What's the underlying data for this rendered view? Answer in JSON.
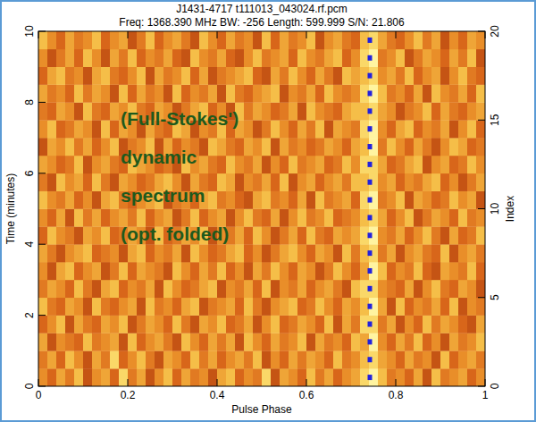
{
  "chart_data": {
    "type": "heatmap",
    "title": "J1431-4717 t111013_043024.rf.pcm",
    "subtitle": "Freq: 1368.390 MHz BW: -256 Length: 599.999 S/N: 21.806",
    "x_label": "Pulse Phase",
    "y_label": "Time (minutes)",
    "y2_label": "Index",
    "annotation": [
      "(Full-Stokes')",
      "dynamic",
      "spectrum",
      "(opt. folded)"
    ],
    "xlim": [
      0,
      1
    ],
    "xticks": [
      0,
      0.2,
      0.4,
      0.6,
      0.8,
      1
    ],
    "ylim": [
      0,
      10
    ],
    "yticks": [
      0,
      2,
      4,
      6,
      8,
      10
    ],
    "y2lim": [
      0,
      20
    ],
    "y2ticks": [
      0,
      5,
      10,
      15,
      20
    ],
    "value_range": [
      0,
      9
    ],
    "cells": [
      [
        5,
        3,
        6,
        4,
        7,
        2,
        5,
        6,
        3,
        8,
        4,
        6,
        2,
        5,
        7,
        3,
        6,
        4,
        5,
        2,
        6,
        7,
        3,
        5,
        4,
        8,
        2,
        6,
        5,
        3,
        7,
        4,
        6,
        3,
        5,
        6,
        8,
        9,
        7,
        4,
        5,
        3,
        6,
        2,
        7,
        4,
        5,
        6,
        3,
        5
      ],
      [
        4,
        6,
        3,
        7,
        5,
        2,
        6,
        4,
        8,
        3,
        5,
        7,
        4,
        2,
        6,
        5,
        3,
        7,
        4,
        6,
        3,
        5,
        6,
        4,
        7,
        2,
        5,
        3,
        6,
        4,
        6,
        5,
        3,
        7,
        4,
        5,
        7,
        8,
        6,
        5,
        3,
        6,
        4,
        5,
        2,
        7,
        3,
        5,
        6,
        4
      ],
      [
        6,
        2,
        5,
        4,
        3,
        7,
        4,
        5,
        6,
        2,
        7,
        3,
        5,
        6,
        4,
        2,
        7,
        5,
        3,
        6,
        4,
        6,
        2,
        7,
        5,
        3,
        6,
        4,
        5,
        7,
        2,
        6,
        4,
        5,
        3,
        7,
        6,
        9,
        5,
        3,
        6,
        4,
        7,
        3,
        5,
        2,
        6,
        4,
        5,
        7
      ],
      [
        3,
        5,
        7,
        2,
        6,
        4,
        3,
        6,
        5,
        7,
        2,
        4,
        6,
        5,
        3,
        7,
        4,
        2,
        6,
        5,
        7,
        3,
        4,
        6,
        2,
        5,
        7,
        3,
        4,
        6,
        5,
        3,
        7,
        2,
        6,
        4,
        8,
        8,
        4,
        6,
        2,
        5,
        3,
        7,
        4,
        6,
        5,
        3,
        2,
        6
      ],
      [
        7,
        4,
        3,
        6,
        5,
        2,
        7,
        4,
        3,
        5,
        6,
        2,
        7,
        4,
        5,
        3,
        6,
        7,
        2,
        4,
        5,
        6,
        3,
        7,
        4,
        2,
        5,
        6,
        7,
        3,
        4,
        7,
        5,
        3,
        6,
        5,
        7,
        9,
        6,
        2,
        7,
        3,
        5,
        4,
        6,
        3,
        7,
        2,
        5,
        4
      ],
      [
        4,
        6,
        5,
        3,
        7,
        4,
        2,
        6,
        7,
        3,
        5,
        4,
        6,
        2,
        7,
        5,
        3,
        4,
        6,
        7,
        2,
        5,
        4,
        6,
        3,
        7,
        2,
        5,
        4,
        6,
        3,
        5,
        6,
        4,
        2,
        7,
        8,
        8,
        5,
        4,
        3,
        6,
        2,
        5,
        7,
        4,
        3,
        6,
        5,
        2
      ],
      [
        5,
        2,
        6,
        7,
        3,
        5,
        6,
        2,
        4,
        7,
        3,
        6,
        5,
        4,
        2,
        7,
        5,
        3,
        6,
        4,
        7,
        3,
        5,
        2,
        6,
        4,
        7,
        5,
        3,
        6,
        5,
        2,
        4,
        7,
        5,
        3,
        6,
        9,
        7,
        3,
        5,
        4,
        7,
        3,
        2,
        6,
        5,
        4,
        7,
        3
      ],
      [
        6,
        4,
        2,
        5,
        6,
        7,
        3,
        4,
        5,
        2,
        6,
        7,
        3,
        5,
        4,
        6,
        2,
        7,
        5,
        3,
        4,
        6,
        7,
        3,
        5,
        2,
        4,
        6,
        7,
        5,
        3,
        6,
        5,
        2,
        7,
        4,
        7,
        8,
        4,
        6,
        2,
        5,
        6,
        4,
        3,
        7,
        2,
        5,
        6,
        4
      ],
      [
        3,
        7,
        5,
        4,
        2,
        6,
        5,
        7,
        3,
        4,
        6,
        5,
        2,
        7,
        3,
        4,
        6,
        5,
        7,
        2,
        5,
        4,
        6,
        3,
        7,
        5,
        2,
        4,
        6,
        3,
        7,
        4,
        3,
        6,
        5,
        6,
        8,
        9,
        5,
        4,
        6,
        3,
        5,
        7,
        4,
        2,
        6,
        3,
        4,
        7
      ],
      [
        5,
        3,
        6,
        2,
        7,
        4,
        6,
        3,
        5,
        6,
        4,
        7,
        3,
        5,
        6,
        2,
        4,
        7,
        3,
        5,
        6,
        2,
        5,
        7,
        4,
        3,
        6,
        2,
        5,
        7,
        4,
        5,
        7,
        3,
        4,
        5,
        7,
        8,
        6,
        3,
        5,
        7,
        2,
        4,
        6,
        5,
        3,
        7,
        4,
        5
      ],
      [
        7,
        5,
        4,
        6,
        3,
        5,
        2,
        6,
        7,
        4,
        3,
        5,
        6,
        7,
        2,
        4,
        5,
        3,
        6,
        7,
        4,
        5,
        3,
        2,
        6,
        7,
        4,
        5,
        3,
        6,
        2,
        7,
        4,
        5,
        6,
        3,
        8,
        9,
        4,
        5,
        7,
        2,
        6,
        5,
        3,
        4,
        7,
        5,
        6,
        2
      ],
      [
        4,
        2,
        7,
        5,
        6,
        3,
        7,
        4,
        2,
        6,
        5,
        3,
        4,
        6,
        7,
        5,
        2,
        6,
        4,
        3,
        7,
        6,
        2,
        5,
        4,
        6,
        3,
        7,
        2,
        5,
        6,
        3,
        5,
        6,
        4,
        7,
        7,
        8,
        5,
        6,
        3,
        5,
        4,
        6,
        7,
        3,
        5,
        2,
        4,
        6
      ],
      [
        6,
        5,
        3,
        4,
        7,
        2,
        5,
        6,
        4,
        3,
        7,
        6,
        5,
        3,
        4,
        2,
        7,
        5,
        6,
        4,
        3,
        7,
        5,
        4,
        6,
        2,
        5,
        3,
        7,
        4,
        5,
        6,
        3,
        4,
        7,
        5,
        8,
        8,
        6,
        3,
        4,
        6,
        7,
        2,
        5,
        6,
        3,
        4,
        7,
        5
      ],
      [
        2,
        6,
        5,
        7,
        4,
        6,
        3,
        5,
        7,
        2,
        4,
        5,
        7,
        2,
        6,
        3,
        5,
        4,
        2,
        7,
        6,
        4,
        3,
        6,
        5,
        7,
        2,
        6,
        4,
        5,
        3,
        4,
        6,
        5,
        3,
        6,
        7,
        9,
        4,
        7,
        5,
        3,
        6,
        4,
        2,
        5,
        7,
        6,
        3,
        4
      ],
      [
        5,
        7,
        3,
        4,
        6,
        5,
        2,
        7,
        3,
        6,
        5,
        2,
        6,
        4,
        3,
        7,
        6,
        2,
        5,
        4,
        7,
        3,
        6,
        5,
        2,
        4,
        7,
        5,
        3,
        6,
        4,
        7,
        2,
        6,
        5,
        4,
        8,
        9,
        5,
        3,
        6,
        7,
        3,
        5,
        4,
        6,
        2,
        5,
        7,
        3
      ],
      [
        4,
        3,
        6,
        5,
        2,
        7,
        4,
        3,
        6,
        5,
        7,
        4,
        3,
        6,
        5,
        2,
        4,
        6,
        7,
        3,
        5,
        2,
        7,
        4,
        6,
        5,
        3,
        4,
        6,
        2,
        7,
        5,
        4,
        3,
        6,
        7,
        7,
        8,
        6,
        5,
        2,
        4,
        5,
        7,
        3,
        6,
        4,
        3,
        5,
        6
      ],
      [
        6,
        4,
        5,
        3,
        7,
        4,
        6,
        5,
        2,
        7,
        3,
        6,
        4,
        5,
        2,
        7,
        3,
        5,
        4,
        6,
        2,
        7,
        4,
        3,
        5,
        6,
        7,
        2,
        5,
        4,
        6,
        3,
        7,
        5,
        4,
        5,
        8,
        9,
        7,
        4,
        5,
        3,
        6,
        2,
        7,
        5,
        4,
        6,
        3,
        7
      ],
      [
        3,
        6,
        7,
        4,
        5,
        2,
        6,
        7,
        4,
        3,
        5,
        7,
        2,
        6,
        4,
        5,
        7,
        3,
        6,
        2,
        4,
        5,
        6,
        7,
        3,
        2,
        6,
        4,
        7,
        5,
        3,
        6,
        4,
        2,
        7,
        6,
        7,
        8,
        5,
        6,
        4,
        7,
        3,
        5,
        6,
        2,
        5,
        7,
        4,
        3
      ],
      [
        5,
        2,
        4,
        6,
        3,
        7,
        5,
        2,
        6,
        4,
        7,
        3,
        5,
        4,
        6,
        3,
        2,
        7,
        5,
        4,
        6,
        3,
        2,
        5,
        7,
        4,
        5,
        6,
        3,
        7,
        5,
        4,
        6,
        7,
        3,
        5,
        8,
        9,
        4,
        5,
        7,
        2,
        4,
        6,
        5,
        3,
        6,
        4,
        7,
        2
      ],
      [
        7,
        5,
        3,
        6,
        4,
        5,
        7,
        3,
        5,
        6,
        2,
        4,
        7,
        3,
        5,
        6,
        4,
        2,
        7,
        5,
        3,
        6,
        4,
        5,
        2,
        7,
        3,
        6,
        4,
        5,
        7,
        2,
        5,
        6,
        4,
        3,
        7,
        8,
        6,
        4,
        3,
        5,
        7,
        4,
        6,
        2,
        5,
        3,
        6,
        5
      ]
    ],
    "marker_line": {
      "x": 0.742,
      "index": [
        0.5,
        1.5,
        2.5,
        3.5,
        4.5,
        5.5,
        6.5,
        7.5,
        8.5,
        9.5,
        10.5,
        11.5,
        12.5,
        13.5,
        14.5,
        15.5,
        16.5,
        17.5,
        18.5,
        19.5
      ],
      "color": "#2222dd",
      "marker": "square"
    }
  }
}
